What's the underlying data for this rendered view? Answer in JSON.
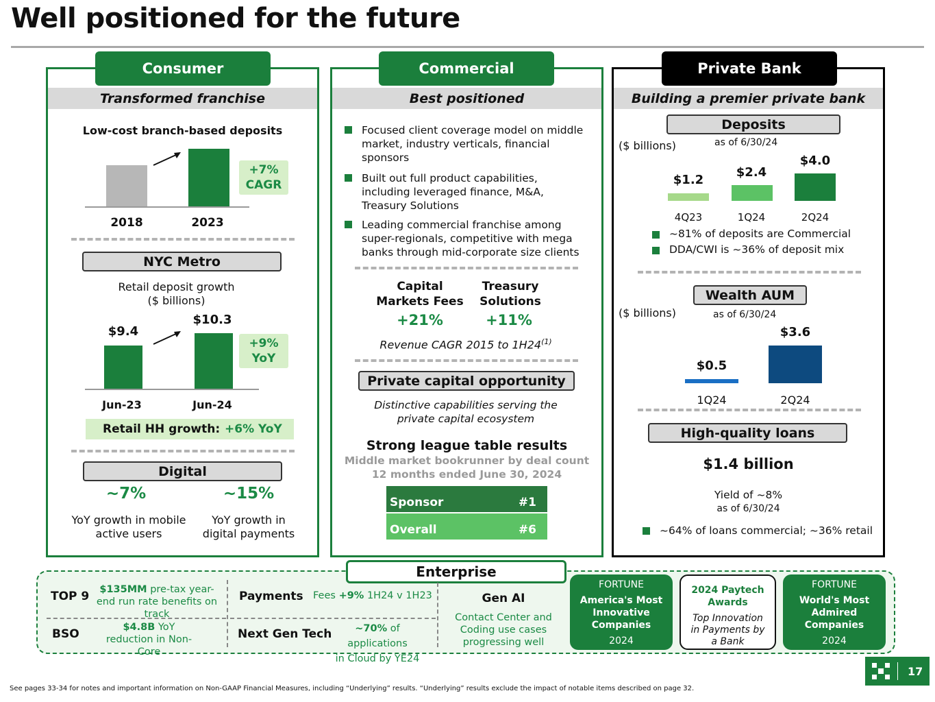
{
  "title": "Well positioned for the future",
  "consumer": {
    "header": "Consumer",
    "subhead": "Transformed franchise",
    "deposits_title": "Low-cost branch-based deposits",
    "deposits_years": [
      "2018",
      "2023"
    ],
    "deposits_cagr": "+7% CAGR",
    "nyc_label": "NYC Metro",
    "retail_title": "Retail deposit growth",
    "retail_units": "($ billions)",
    "retail_values": [
      "$9.4",
      "$10.3"
    ],
    "retail_periods": [
      "Jun-23",
      "Jun-24"
    ],
    "retail_yoy": "+9% YoY",
    "hh_label": "Retail HH growth:",
    "hh_value": "+6% YoY",
    "digital_label": "Digital",
    "digital_stat1": "~7%",
    "digital_desc1": "YoY growth in mobile active users",
    "digital_stat2": "~15%",
    "digital_desc2": "YoY growth in digital payments"
  },
  "commercial": {
    "header": "Commercial",
    "subhead": "Best positioned",
    "bullets": [
      "Focused client coverage model on middle market, industry verticals, financial sponsors",
      "Built out full product capabilities, including leveraged finance, M&A, Treasury Solutions",
      "Leading commercial franchise among super-regionals, competitive with mega banks through mid-corporate size clients"
    ],
    "metric1_label": "Capital Markets Fees",
    "metric1_value": "+21%",
    "metric2_label": "Treasury Solutions",
    "metric2_value": "+11%",
    "cagr_note": "Revenue CAGR 2015 to 1H24",
    "cagr_footnote": "(1)",
    "pc_label": "Private capital opportunity",
    "pc_desc": "Distinctive capabilities serving the private capital ecosystem",
    "league_title": "Strong league table results",
    "league_sub1": "Middle market bookrunner by deal count",
    "league_sub2": "12 months ended June 30, 2024",
    "league_rows": [
      {
        "name": "Sponsor",
        "rank": "#1"
      },
      {
        "name": "Overall",
        "rank": "#6"
      }
    ]
  },
  "private_bank": {
    "header": "Private Bank",
    "subhead": "Building a premier private bank",
    "deposits_label": "Deposits",
    "deposits_units": "($ billions)",
    "deposits_asof": "as of 6/30/24",
    "deposits_values": [
      "$1.2",
      "$2.4",
      "$4.0"
    ],
    "deposits_periods": [
      "4Q23",
      "1Q24",
      "2Q24"
    ],
    "deposits_bullets": [
      "~81% of deposits are Commercial",
      "DDA/CWI is ~36% of deposit mix"
    ],
    "wealth_label": "Wealth AUM",
    "wealth_units": "($ billions)",
    "wealth_asof": "as of 6/30/24",
    "wealth_values": [
      "$0.5",
      "$3.6"
    ],
    "wealth_periods": [
      "1Q24",
      "2Q24"
    ],
    "loans_label": "High-quality loans",
    "loans_value": "$1.4 billion",
    "loans_yield": "Yield of ~8%",
    "loans_asof": "as of 6/30/24",
    "loans_bullet": "~64% of loans commercial; ~36% retail"
  },
  "enterprise": {
    "header": "Enterprise",
    "top9_label": "TOP 9",
    "top9_value": "$135MM",
    "top9_desc": "pre-tax year-end run rate benefits on track",
    "bso_label": "BSO",
    "bso_value": "$4.8B",
    "bso_desc": "YoY reduction in Non-Core",
    "payments_label": "Payments",
    "payments_desc_a": "Fees ",
    "payments_value": "+9%",
    "payments_desc_b": " 1H24 v 1H23",
    "ngt_label": "Next Gen Tech",
    "ngt_value": "~70%",
    "ngt_desc_a": " of applications",
    "ngt_desc_b": "in Cloud by YE24",
    "genai_label": "Gen AI",
    "genai_desc": "Contact Center and Coding use cases progressing well"
  },
  "awards": [
    {
      "top": "FORTUNE",
      "title": "America's Most Innovative Companies",
      "year": "2024"
    },
    {
      "top": "2024 Paytech Awards",
      "title": "Top Innovation in Payments by a Bank",
      "year": ""
    },
    {
      "top": "FORTUNE",
      "title": "World's Most Admired Companies",
      "year": "2024"
    }
  ],
  "page_number": "17",
  "footnote": "See pages 33-34 for notes and important information on Non-GAAP Financial Measures, including “Underlying” results. “Underlying” results exclude the impact of notable items described on page 32.",
  "colors": {
    "brand_green": "#1b7f3c",
    "light_green": "#5cc265",
    "gray_bar": "#b7b7b7",
    "blue_light": "#1a6fc4",
    "blue_dark": "#0d4a7f"
  }
}
